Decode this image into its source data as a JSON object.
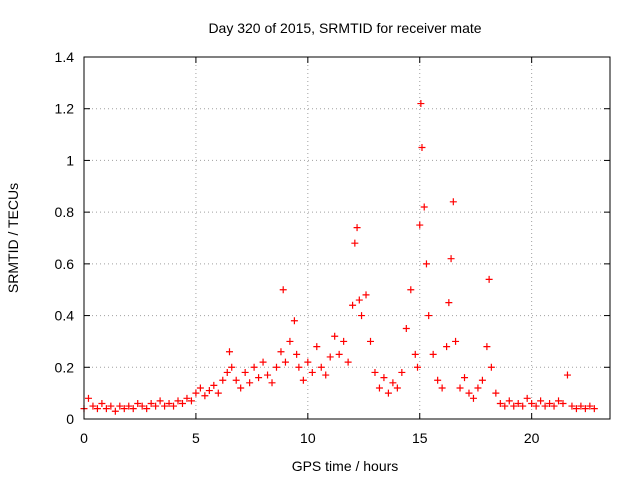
{
  "chart_data": {
    "type": "scatter",
    "title": "Day 320 of 2015, SRMTID for receiver mate",
    "xlabel": "GPS time / hours",
    "ylabel": "SRMTID / TECUs",
    "xlim": [
      0,
      23.5
    ],
    "ylim": [
      0,
      1.4
    ],
    "xticks": [
      0,
      5,
      10,
      15,
      20
    ],
    "xtick_labels": [
      "0",
      "5",
      "10",
      "15",
      "20"
    ],
    "yticks": [
      0,
      0.2,
      0.4,
      0.6,
      0.8,
      1,
      1.2,
      1.4
    ],
    "ytick_labels": [
      "0",
      "0.2",
      "0.4",
      "0.6",
      "0.8",
      "1",
      "1.2",
      "1.4"
    ],
    "grid": true,
    "marker": "+",
    "series": [
      {
        "name": "SRMTID",
        "color": "#ff0000",
        "x": [
          0.0,
          0.2,
          0.4,
          0.6,
          0.8,
          1.0,
          1.2,
          1.4,
          1.6,
          1.8,
          2.0,
          2.2,
          2.4,
          2.6,
          2.8,
          3.0,
          3.2,
          3.4,
          3.6,
          3.8,
          4.0,
          4.2,
          4.4,
          4.6,
          4.8,
          5.0,
          5.2,
          5.4,
          5.6,
          5.8,
          6.0,
          6.2,
          6.4,
          6.5,
          6.6,
          6.8,
          7.0,
          7.2,
          7.4,
          7.6,
          7.8,
          8.0,
          8.2,
          8.4,
          8.6,
          8.8,
          8.9,
          9.0,
          9.2,
          9.4,
          9.5,
          9.6,
          9.8,
          10.0,
          10.2,
          10.4,
          10.6,
          10.8,
          11.0,
          11.2,
          11.4,
          11.6,
          11.8,
          12.0,
          12.1,
          12.2,
          12.3,
          12.4,
          12.6,
          12.8,
          13.0,
          13.2,
          13.4,
          13.6,
          13.8,
          14.0,
          14.2,
          14.4,
          14.6,
          14.8,
          14.9,
          15.0,
          15.05,
          15.1,
          15.2,
          15.3,
          15.4,
          15.6,
          15.8,
          16.0,
          16.2,
          16.3,
          16.4,
          16.5,
          16.6,
          16.8,
          17.0,
          17.2,
          17.4,
          17.6,
          17.8,
          18.0,
          18.1,
          18.2,
          18.4,
          18.6,
          18.8,
          19.0,
          19.2,
          19.4,
          19.6,
          19.8,
          20.0,
          20.2,
          20.4,
          20.6,
          20.8,
          21.0,
          21.2,
          21.4,
          21.6,
          21.8,
          22.0,
          22.2,
          22.4,
          22.6,
          22.8
        ],
        "y": [
          0.04,
          0.08,
          0.05,
          0.04,
          0.06,
          0.04,
          0.05,
          0.03,
          0.05,
          0.04,
          0.05,
          0.04,
          0.06,
          0.05,
          0.04,
          0.06,
          0.05,
          0.07,
          0.05,
          0.06,
          0.05,
          0.07,
          0.06,
          0.08,
          0.07,
          0.1,
          0.12,
          0.09,
          0.11,
          0.13,
          0.1,
          0.15,
          0.18,
          0.26,
          0.2,
          0.15,
          0.12,
          0.18,
          0.14,
          0.2,
          0.16,
          0.22,
          0.17,
          0.14,
          0.2,
          0.26,
          0.5,
          0.22,
          0.3,
          0.38,
          0.25,
          0.2,
          0.15,
          0.22,
          0.18,
          0.28,
          0.2,
          0.17,
          0.24,
          0.32,
          0.25,
          0.3,
          0.22,
          0.44,
          0.68,
          0.74,
          0.46,
          0.4,
          0.48,
          0.3,
          0.18,
          0.12,
          0.16,
          0.1,
          0.14,
          0.12,
          0.18,
          0.35,
          0.5,
          0.25,
          0.2,
          0.75,
          1.22,
          1.05,
          0.82,
          0.6,
          0.4,
          0.25,
          0.15,
          0.12,
          0.28,
          0.45,
          0.62,
          0.84,
          0.3,
          0.12,
          0.16,
          0.1,
          0.08,
          0.12,
          0.15,
          0.28,
          0.54,
          0.2,
          0.1,
          0.06,
          0.05,
          0.07,
          0.05,
          0.06,
          0.05,
          0.08,
          0.06,
          0.05,
          0.07,
          0.05,
          0.06,
          0.05,
          0.07,
          0.06,
          0.17,
          0.05,
          0.04,
          0.05,
          0.04,
          0.05,
          0.04
        ]
      }
    ]
  }
}
